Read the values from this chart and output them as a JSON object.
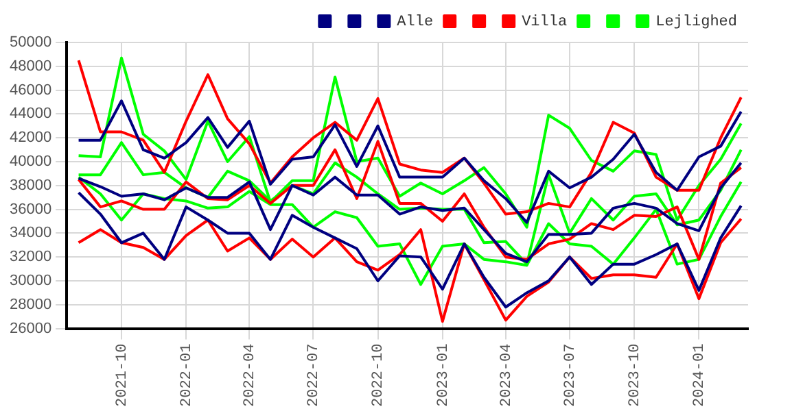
{
  "chart_data": {
    "type": "line",
    "x": [
      "2021-08",
      "2021-09",
      "2021-10",
      "2021-11",
      "2021-12",
      "2022-01",
      "2022-02",
      "2022-03",
      "2022-04",
      "2022-05",
      "2022-06",
      "2022-07",
      "2022-08",
      "2022-09",
      "2022-10",
      "2022-11",
      "2022-12",
      "2023-01",
      "2023-02",
      "2023-03",
      "2023-04",
      "2023-05",
      "2023-06",
      "2023-07",
      "2023-08",
      "2023-09",
      "2023-10",
      "2023-11",
      "2023-12",
      "2024-01",
      "2024-02",
      "2024-03"
    ],
    "series": [
      {
        "color": "#000080",
        "values": [
          41800,
          41800,
          45100,
          41000,
          40300,
          41600,
          43700,
          41200,
          43400,
          38100,
          40200,
          40400,
          43100,
          39600,
          43000,
          38700,
          38700,
          38700,
          40300,
          38400,
          36900,
          34900,
          39200,
          37800,
          38700,
          40200,
          42300,
          39100,
          37600,
          40400,
          41300,
          44200
        ]
      },
      {
        "color": "#000080",
        "values": [
          37400,
          35600,
          33200,
          34000,
          31800,
          36200,
          35100,
          34000,
          34000,
          31800,
          35500,
          34500,
          33600,
          32700,
          30000,
          32100,
          32000,
          29300,
          33100,
          30300,
          27800,
          29000,
          30000,
          32000,
          29700,
          31400,
          31400,
          32200,
          33100,
          29200,
          33600,
          36300
        ]
      },
      {
        "name": "Alle",
        "color": "#000080",
        "values": [
          38600,
          37900,
          37100,
          37300,
          36800,
          37800,
          37000,
          37000,
          38300,
          34300,
          38000,
          37200,
          38700,
          37200,
          37200,
          35600,
          36200,
          35900,
          36100,
          34300,
          32300,
          31600,
          33900,
          33900,
          34000,
          36100,
          36500,
          36100,
          34800,
          34200,
          37800,
          39900
        ]
      },
      {
        "color": "#ff0000",
        "values": [
          48500,
          42500,
          42500,
          41800,
          39100,
          43400,
          47300,
          43600,
          41500,
          38200,
          40400,
          42000,
          43300,
          41800,
          45300,
          39800,
          39300,
          39100,
          40300,
          38200,
          35600,
          35800,
          36500,
          36200,
          39100,
          43300,
          42400,
          38700,
          37600,
          37600,
          42000,
          45400
        ]
      },
      {
        "color": "#ff0000",
        "values": [
          33200,
          34300,
          33200,
          32800,
          31800,
          33800,
          35100,
          32500,
          33600,
          31800,
          33500,
          32000,
          33600,
          31600,
          30900,
          32200,
          34300,
          26600,
          33100,
          30100,
          26700,
          28700,
          29900,
          32000,
          30200,
          30500,
          30500,
          30300,
          33100,
          28500,
          33200,
          35200
        ]
      },
      {
        "name": "Villa",
        "color": "#ff0000",
        "values": [
          38500,
          36200,
          36700,
          36000,
          36000,
          38300,
          36900,
          36800,
          38000,
          36500,
          38000,
          38000,
          41000,
          36900,
          41700,
          36500,
          36500,
          35000,
          37300,
          34500,
          32000,
          31800,
          33100,
          33500,
          34800,
          34300,
          35500,
          35400,
          36200,
          31800,
          38200,
          39500
        ]
      },
      {
        "color": "#00ff00",
        "values": [
          40500,
          40400,
          48700,
          42300,
          40900,
          38500,
          43400,
          40000,
          42100,
          36600,
          38400,
          38400,
          47100,
          40000,
          40300,
          37100,
          38200,
          37300,
          38400,
          39500,
          37300,
          34500,
          43900,
          42800,
          40100,
          39200,
          40900,
          40600,
          35100,
          38000,
          40200,
          43200
        ]
      },
      {
        "color": "#00ff00",
        "values": [
          38700,
          37300,
          35100,
          37300,
          36900,
          36700,
          36100,
          36200,
          37500,
          36400,
          36400,
          34500,
          35800,
          35300,
          32900,
          33100,
          29700,
          32900,
          33100,
          31800,
          31600,
          31300,
          34800,
          33100,
          32900,
          31400,
          33600,
          36000,
          31400,
          31800,
          35400,
          38300
        ]
      },
      {
        "name": "Lejlighed",
        "color": "#00ff00",
        "values": [
          38900,
          38900,
          41600,
          38900,
          39100,
          37800,
          37000,
          39200,
          38400,
          36700,
          38000,
          37300,
          39900,
          38700,
          37300,
          36000,
          36100,
          36000,
          36000,
          33200,
          33300,
          31400,
          38900,
          34000,
          36900,
          35100,
          37100,
          37300,
          34700,
          35100,
          37600,
          41000
        ]
      }
    ],
    "xlim": [
      "2021-07-15",
      "2024-03-11"
    ],
    "xticks": [
      "2021-10",
      "2022-01",
      "2022-04",
      "2022-07",
      "2022-10",
      "2023-01",
      "2023-04",
      "2023-07",
      "2023-10",
      "2024-01"
    ],
    "ylim": [
      26000,
      50000
    ],
    "yticks": [
      26000,
      28000,
      30000,
      32000,
      34000,
      36000,
      38000,
      40000,
      42000,
      44000,
      46000,
      48000,
      50000
    ],
    "grid": true,
    "legend": "top right",
    "marker": "none",
    "line_style": "solid"
  }
}
